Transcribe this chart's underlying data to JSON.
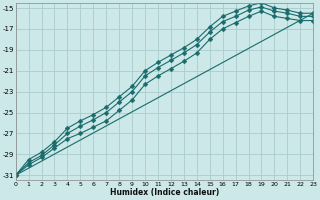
{
  "xlabel": "Humidex (Indice chaleur)",
  "background_color": "#cce8e8",
  "grid_color": "#aacccc",
  "line_color": "#1a6b6b",
  "xlim": [
    0,
    23
  ],
  "ylim": [
    -31.5,
    -14.5
  ],
  "xticks": [
    0,
    1,
    2,
    3,
    4,
    5,
    6,
    7,
    8,
    9,
    10,
    11,
    12,
    13,
    14,
    15,
    16,
    17,
    18,
    19,
    20,
    21,
    22,
    23
  ],
  "yticks": [
    -31,
    -29,
    -27,
    -25,
    -23,
    -21,
    -19,
    -17,
    -15
  ],
  "series": [
    {
      "x": [
        0,
        1,
        2,
        3,
        4,
        5,
        6,
        7,
        8,
        9,
        10,
        11,
        12,
        13,
        14,
        15,
        16,
        17,
        18,
        19,
        20,
        21,
        22,
        23
      ],
      "y": [
        -31,
        -29.5,
        -28.8,
        -27.8,
        -26.5,
        -25.8,
        -25.2,
        -24.5,
        -23.5,
        -22.5,
        -21.0,
        -20.2,
        -19.5,
        -18.8,
        -18.0,
        -16.8,
        -15.8,
        -15.3,
        -14.8,
        -14.5,
        -15.0,
        -15.2,
        -15.5,
        -15.5
      ],
      "marker": "D",
      "markersize": 2.5
    },
    {
      "x": [
        0,
        1,
        2,
        3,
        4,
        5,
        6,
        7,
        8,
        9,
        10,
        11,
        12,
        13,
        14,
        15,
        16,
        17,
        18,
        19,
        20,
        21,
        22,
        23
      ],
      "y": [
        -31,
        -29.8,
        -29.1,
        -28.1,
        -27.0,
        -26.3,
        -25.7,
        -25.0,
        -24.0,
        -23.0,
        -21.5,
        -20.7,
        -20.0,
        -19.3,
        -18.5,
        -17.3,
        -16.3,
        -15.8,
        -15.2,
        -14.9,
        -15.3,
        -15.5,
        -15.8,
        -15.8
      ],
      "marker": "D",
      "markersize": 2.5
    },
    {
      "x": [
        0,
        1,
        2,
        3,
        4,
        5,
        6,
        7,
        8,
        9,
        10,
        11,
        12,
        13,
        14,
        15,
        16,
        17,
        18,
        19,
        20,
        21,
        22,
        23
      ],
      "y": [
        -31,
        -30.0,
        -29.3,
        -28.4,
        -27.5,
        -27.0,
        -26.4,
        -25.8,
        -24.8,
        -23.8,
        -22.3,
        -21.5,
        -20.8,
        -20.1,
        -19.3,
        -18.0,
        -17.0,
        -16.4,
        -15.8,
        -15.3,
        -15.8,
        -16.0,
        -16.2,
        -16.2
      ],
      "marker": "D",
      "markersize": 2.5
    },
    {
      "x": [
        0,
        23
      ],
      "y": [
        -31,
        -15.5
      ],
      "marker": null,
      "markersize": 0
    }
  ]
}
